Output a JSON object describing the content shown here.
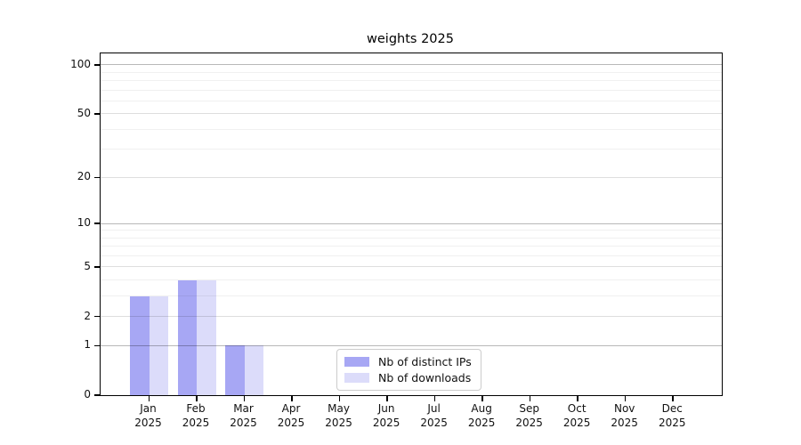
{
  "title": "weights 2025",
  "chart_data": {
    "type": "bar",
    "title": "weights 2025",
    "categories": [
      "Jan",
      "Feb",
      "Mar",
      "Apr",
      "May",
      "Jun",
      "Jul",
      "Aug",
      "Sep",
      "Oct",
      "Nov",
      "Dec"
    ],
    "year_label": "2025",
    "series": [
      {
        "name": "Nb of distinct IPs",
        "color": "#a7a7f4",
        "values": [
          3,
          4,
          1,
          0,
          0,
          0,
          0,
          0,
          0,
          0,
          0,
          0
        ]
      },
      {
        "name": "Nb of downloads",
        "color": "#dcdcfa",
        "values": [
          3,
          4,
          1,
          0,
          0,
          0,
          0,
          0,
          0,
          0,
          0,
          0
        ]
      }
    ],
    "y_axis": {
      "scale": "log1p",
      "tick_values": [
        0,
        1,
        2,
        5,
        10,
        20,
        50,
        100
      ],
      "decade_values": [
        1,
        10,
        100
      ],
      "minor_values": [
        3,
        4,
        6,
        7,
        8,
        9,
        30,
        40,
        60,
        70,
        80,
        90
      ],
      "ylim": [
        0,
        118
      ]
    },
    "xlabel": "",
    "ylabel": "",
    "grid": true,
    "legend_position": "lower center",
    "colors": {
      "grid_decade": "rgba(0,0,0,0.28)",
      "grid_major": "rgba(0,0,0,0.13)",
      "grid_minor": "rgba(0,0,0,0.06)",
      "spine": "#000000",
      "background": "#ffffff"
    }
  }
}
